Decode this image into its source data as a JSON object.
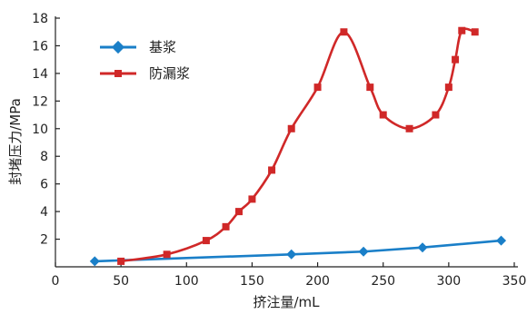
{
  "chart_data": {
    "type": "line",
    "xlabel": "挤注量/mL",
    "ylabel": "封堵压力/MPa",
    "xlim": [
      0,
      350
    ],
    "ylim": [
      0,
      18
    ],
    "x_ticks": [
      0,
      50,
      100,
      150,
      200,
      250,
      300,
      350
    ],
    "y_ticks": [
      2,
      4,
      6,
      8,
      10,
      12,
      14,
      16,
      18
    ],
    "grid": false,
    "legend_position": "top-left",
    "series": [
      {
        "name": "基浆",
        "color": "#1a7fc8",
        "marker": "diamond",
        "smooth": false,
        "x": [
          30,
          180,
          235,
          280,
          340
        ],
        "y": [
          0.4,
          0.9,
          1.1,
          1.4,
          1.9
        ]
      },
      {
        "name": "防漏浆",
        "color": "#d02828",
        "marker": "square",
        "smooth": true,
        "x": [
          50,
          85,
          115,
          130,
          140,
          150,
          165,
          180,
          200,
          220,
          240,
          250,
          270,
          290,
          300,
          305,
          310,
          320
        ],
        "y": [
          0.4,
          0.9,
          1.9,
          2.9,
          4.0,
          4.9,
          7.0,
          10.0,
          13.0,
          17.0,
          13.0,
          11.0,
          10.0,
          11.0,
          13.0,
          15.0,
          17.1,
          17.0
        ]
      }
    ]
  }
}
